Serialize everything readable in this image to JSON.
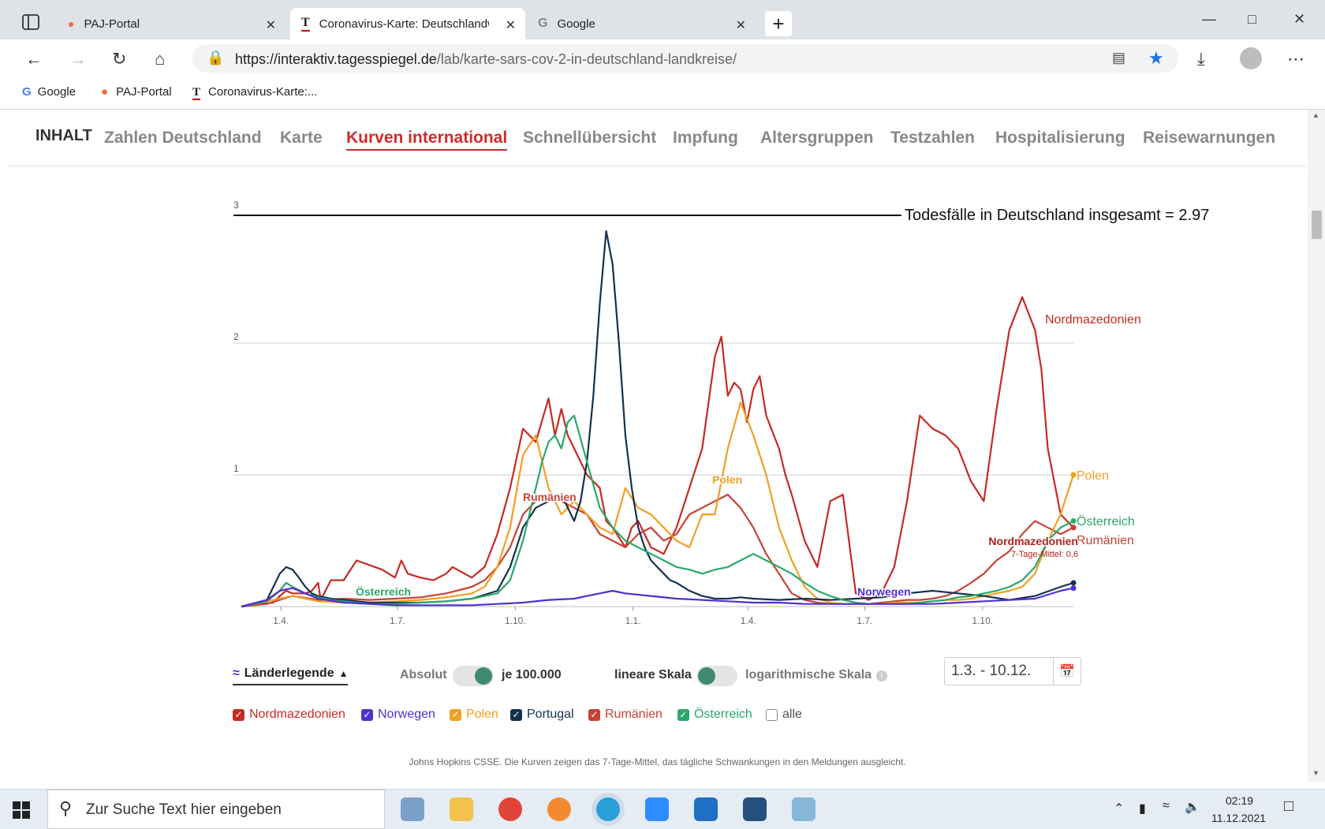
{
  "browser": {
    "tabs": [
      {
        "title": "PAJ-Portal",
        "active": false
      },
      {
        "title": "Coronavirus-Karte: Deutschlandw",
        "active": true
      },
      {
        "title": "Google",
        "active": false
      }
    ],
    "new_tab": "+",
    "url_host": "https://interaktiv.tagesspiegel.de",
    "url_path": "/lab/karte-sars-cov-2-in-deutschland-landkreise/",
    "bookmarks": [
      "Google",
      "PAJ-Portal",
      "Coronavirus-Karte:..."
    ]
  },
  "site_nav": {
    "inhalt": "INHALT",
    "items": [
      "Zahlen Deutschland",
      "Karte",
      "Kurven international",
      "Schnellübersicht",
      "Impfung",
      "Altersgruppen",
      "Testzahlen",
      "Hospitalisierung",
      "Reisewarnungen"
    ],
    "active": "Kurven international"
  },
  "chart_data": {
    "type": "line",
    "reference_line": {
      "label": "Todesfälle in Deutschland insgesamt = 2.97",
      "value": 2.97
    },
    "y_ticks": [
      "3",
      "2",
      "1"
    ],
    "ylim": [
      0,
      3
    ],
    "x_ticks": [
      "1.4.",
      "1.7.",
      "1.10.",
      "1.1.",
      "1.4.",
      "1.7.",
      "1.10."
    ],
    "x_range_days": [
      0,
      650
    ],
    "series": [
      {
        "name": "Nordmazedonien",
        "color": "#c62a24",
        "x": [
          0,
          25,
          30,
          35,
          40,
          50,
          55,
          60,
          62,
          70,
          80,
          90,
          110,
          120,
          125,
          130,
          140,
          150,
          160,
          165,
          180,
          190,
          200,
          210,
          220,
          230,
          240,
          245,
          250,
          255,
          260,
          270,
          280,
          285,
          290,
          300,
          305,
          310,
          320,
          330,
          340,
          350,
          360,
          370,
          375,
          380,
          385,
          390,
          395,
          400,
          405,
          410,
          420,
          425,
          430,
          440,
          450,
          460,
          470,
          480,
          490,
          500,
          510,
          520,
          530,
          540,
          550,
          560,
          570,
          580,
          590,
          600,
          610,
          620,
          625,
          630,
          640,
          650
        ],
        "y": [
          0,
          0.03,
          0.08,
          0.12,
          0.1,
          0.1,
          0.12,
          0.18,
          0.05,
          0.2,
          0.2,
          0.35,
          0.28,
          0.22,
          0.35,
          0.25,
          0.22,
          0.2,
          0.25,
          0.3,
          0.22,
          0.3,
          0.55,
          0.9,
          1.35,
          1.25,
          1.58,
          1.3,
          1.5,
          1.3,
          1.2,
          1.0,
          0.9,
          0.65,
          0.6,
          0.45,
          0.6,
          0.65,
          0.45,
          0.4,
          0.6,
          0.9,
          1.2,
          1.9,
          2.05,
          1.6,
          1.7,
          1.65,
          1.4,
          1.65,
          1.75,
          1.45,
          1.2,
          1.0,
          0.85,
          0.5,
          0.3,
          0.8,
          0.85,
          0.1,
          0.05,
          0.1,
          0.3,
          0.8,
          1.45,
          1.35,
          1.3,
          1.2,
          0.95,
          0.8,
          1.5,
          2.1,
          2.35,
          2.1,
          1.8,
          1.2,
          0.7,
          0.6
        ]
      },
      {
        "name": "Rumänien",
        "color": "#c74237",
        "x": [
          0,
          20,
          30,
          40,
          60,
          80,
          100,
          120,
          140,
          160,
          180,
          190,
          200,
          210,
          220,
          230,
          240,
          250,
          260,
          270,
          280,
          290,
          300,
          310,
          320,
          330,
          340,
          350,
          360,
          370,
          380,
          390,
          400,
          410,
          420,
          430,
          440,
          450,
          460,
          470,
          480,
          490,
          500,
          510,
          520,
          530,
          540,
          550,
          560,
          570,
          580,
          590,
          600,
          610,
          620,
          630,
          640,
          650
        ],
        "y": [
          0,
          0.02,
          0.05,
          0.08,
          0.05,
          0.06,
          0.05,
          0.06,
          0.07,
          0.1,
          0.15,
          0.2,
          0.3,
          0.45,
          0.7,
          0.8,
          0.85,
          0.8,
          0.75,
          0.7,
          0.55,
          0.5,
          0.45,
          0.55,
          0.6,
          0.5,
          0.55,
          0.7,
          0.75,
          0.8,
          0.85,
          0.75,
          0.6,
          0.4,
          0.25,
          0.1,
          0.05,
          0.03,
          0.02,
          0.02,
          0.02,
          0.02,
          0.03,
          0.04,
          0.05,
          0.05,
          0.06,
          0.08,
          0.12,
          0.18,
          0.25,
          0.35,
          0.42,
          0.55,
          0.65,
          0.6,
          0.55,
          0.6
        ]
      },
      {
        "name": "Polen",
        "color": "#f0a020",
        "x": [
          0,
          20,
          40,
          60,
          80,
          100,
          120,
          140,
          160,
          180,
          190,
          200,
          210,
          220,
          230,
          240,
          250,
          260,
          270,
          280,
          290,
          300,
          310,
          320,
          330,
          340,
          350,
          360,
          370,
          380,
          390,
          400,
          410,
          420,
          430,
          440,
          450,
          460,
          470,
          480,
          490,
          500,
          510,
          520,
          530,
          540,
          550,
          560,
          570,
          580,
          590,
          600,
          610,
          620,
          630,
          640,
          650
        ],
        "y": [
          0,
          0.04,
          0.08,
          0.04,
          0.03,
          0.03,
          0.04,
          0.05,
          0.07,
          0.1,
          0.15,
          0.3,
          0.6,
          1.15,
          1.3,
          0.9,
          0.7,
          0.8,
          0.7,
          0.6,
          0.55,
          0.9,
          0.75,
          0.7,
          0.6,
          0.5,
          0.45,
          0.7,
          0.7,
          1.2,
          1.55,
          1.3,
          1.0,
          0.6,
          0.35,
          0.15,
          0.06,
          0.03,
          0.02,
          0.02,
          0.02,
          0.02,
          0.03,
          0.03,
          0.03,
          0.04,
          0.05,
          0.05,
          0.06,
          0.08,
          0.1,
          0.12,
          0.15,
          0.25,
          0.5,
          0.7,
          1.0
        ]
      },
      {
        "name": "Portugal",
        "color": "#14324f",
        "x": [
          0,
          20,
          25,
          30,
          35,
          40,
          45,
          50,
          55,
          60,
          70,
          80,
          100,
          120,
          140,
          160,
          180,
          200,
          210,
          220,
          230,
          240,
          250,
          255,
          260,
          265,
          270,
          275,
          280,
          285,
          290,
          295,
          300,
          305,
          310,
          315,
          320,
          325,
          330,
          335,
          340,
          350,
          360,
          370,
          380,
          390,
          400,
          420,
          440,
          460,
          480,
          500,
          520,
          540,
          560,
          580,
          600,
          620,
          640,
          650
        ],
        "y": [
          0,
          0.05,
          0.15,
          0.25,
          0.3,
          0.28,
          0.22,
          0.15,
          0.1,
          0.08,
          0.06,
          0.05,
          0.03,
          0.03,
          0.03,
          0.04,
          0.06,
          0.12,
          0.3,
          0.6,
          0.75,
          0.8,
          0.85,
          0.75,
          0.65,
          0.8,
          1.1,
          1.6,
          2.3,
          2.85,
          2.6,
          2.0,
          1.3,
          0.9,
          0.6,
          0.45,
          0.35,
          0.3,
          0.25,
          0.2,
          0.18,
          0.12,
          0.08,
          0.06,
          0.06,
          0.07,
          0.06,
          0.05,
          0.06,
          0.05,
          0.06,
          0.07,
          0.1,
          0.12,
          0.1,
          0.08,
          0.05,
          0.08,
          0.15,
          0.18
        ]
      },
      {
        "name": "Österreich",
        "color": "#2aa86a",
        "x": [
          0,
          20,
          30,
          35,
          40,
          50,
          60,
          70,
          80,
          100,
          120,
          140,
          160,
          180,
          200,
          210,
          220,
          230,
          235,
          240,
          245,
          250,
          255,
          260,
          270,
          280,
          290,
          300,
          310,
          320,
          330,
          340,
          350,
          360,
          370,
          380,
          390,
          400,
          410,
          420,
          430,
          440,
          450,
          460,
          470,
          480,
          490,
          500,
          510,
          520,
          530,
          540,
          550,
          560,
          570,
          580,
          590,
          600,
          610,
          620,
          630,
          640,
          650
        ],
        "y": [
          0,
          0.04,
          0.12,
          0.18,
          0.15,
          0.1,
          0.07,
          0.05,
          0.04,
          0.02,
          0.02,
          0.03,
          0.04,
          0.06,
          0.1,
          0.2,
          0.5,
          0.9,
          1.1,
          1.25,
          1.3,
          1.2,
          1.4,
          1.45,
          1.1,
          0.75,
          0.6,
          0.5,
          0.45,
          0.4,
          0.35,
          0.3,
          0.28,
          0.25,
          0.28,
          0.3,
          0.35,
          0.4,
          0.35,
          0.3,
          0.25,
          0.18,
          0.12,
          0.08,
          0.05,
          0.03,
          0.02,
          0.02,
          0.02,
          0.02,
          0.03,
          0.04,
          0.05,
          0.07,
          0.08,
          0.1,
          0.12,
          0.15,
          0.2,
          0.3,
          0.5,
          0.6,
          0.65
        ]
      },
      {
        "name": "Norwegen",
        "color": "#5030d0",
        "x": [
          0,
          20,
          30,
          40,
          50,
          60,
          80,
          100,
          120,
          140,
          160,
          180,
          200,
          220,
          240,
          260,
          270,
          280,
          290,
          300,
          320,
          340,
          360,
          380,
          400,
          420,
          440,
          460,
          480,
          500,
          520,
          540,
          560,
          580,
          600,
          620,
          640,
          650
        ],
        "y": [
          0,
          0.05,
          0.12,
          0.14,
          0.1,
          0.06,
          0.03,
          0.02,
          0.01,
          0.01,
          0.01,
          0.01,
          0.02,
          0.03,
          0.05,
          0.06,
          0.08,
          0.1,
          0.12,
          0.1,
          0.08,
          0.06,
          0.05,
          0.04,
          0.03,
          0.03,
          0.02,
          0.02,
          0.02,
          0.02,
          0.02,
          0.02,
          0.03,
          0.04,
          0.05,
          0.06,
          0.12,
          0.14
        ]
      }
    ],
    "series_labels": [
      {
        "text": "Nordmazedonien",
        "series": "Nordmazedonien"
      },
      {
        "text": "Polen",
        "series": "Polen"
      },
      {
        "text": "Österreich",
        "series": "Österreich"
      },
      {
        "text": "Rumänien",
        "series": "Rumänien"
      },
      {
        "text": "Rumänien",
        "series": "Rumänien"
      },
      {
        "text": "Polen",
        "series": "Polen"
      },
      {
        "text": "Österreich",
        "series": "Österreich"
      },
      {
        "text": "Norwegen",
        "series": "Norwegen"
      }
    ],
    "tooltip": {
      "title": "Nordmazedonien",
      "detail": "7-Tage-Mittel: 0,6"
    }
  },
  "controls": {
    "legend_toggle": "Länderlegende",
    "absolut": "Absolut",
    "per100k": "je 100.000",
    "linear": "lineare Skala",
    "log": "logarithmische Skala",
    "info": "i",
    "date_range": "1.3. - 10.12."
  },
  "countries": [
    {
      "name": "Nordmazedonien",
      "checked": true,
      "color": "#c62a24"
    },
    {
      "name": "Norwegen",
      "checked": true,
      "color": "#5030d0"
    },
    {
      "name": "Polen",
      "checked": true,
      "color": "#f0a020"
    },
    {
      "name": "Portugal",
      "checked": true,
      "color": "#14324f"
    },
    {
      "name": "Rumänien",
      "checked": true,
      "color": "#c74237"
    },
    {
      "name": "Österreich",
      "checked": true,
      "color": "#2aa86a"
    },
    {
      "name": "alle",
      "checked": false,
      "color": "#555555"
    }
  ],
  "footnote": "Johns Hopkins CSSE. Die Kurven zeigen das 7-Tage-Mittel, das tägliche Schwankungen in den Meldungen ausgleicht.",
  "taskbar": {
    "search_placeholder": "Zur Suche Text hier eingeben",
    "time": "02:19",
    "date": "11.12.2021"
  }
}
